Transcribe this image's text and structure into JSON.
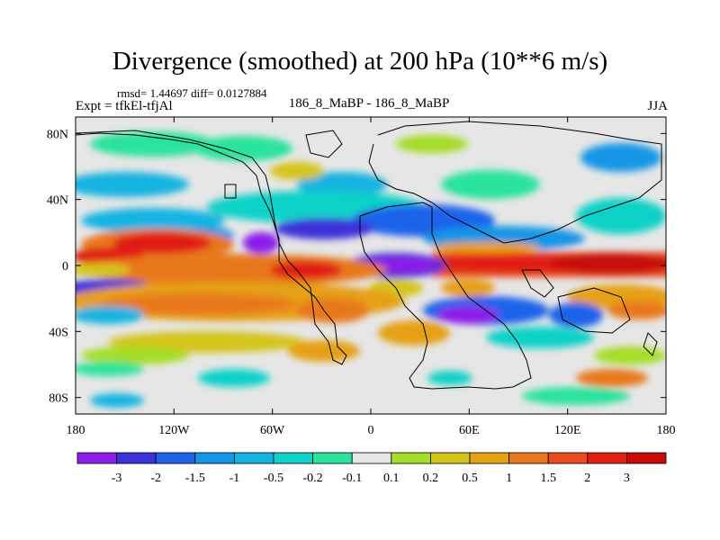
{
  "title": "Divergence (smoothed) at 200 hPa (10**6 m/s)",
  "stats_line": "rmsd= 1.44697 diff= 0.0127884",
  "expt_line": "Expt = tfkEl-tfjAl",
  "comparison_label": "186_8_MaBP - 186_8_MaBP",
  "season": "JJA",
  "map": {
    "projection": "cylindrical-equidistant",
    "lon_range": [
      -180,
      180
    ],
    "lat_range": [
      -90,
      90
    ],
    "x_ticks": [
      {
        "lon": -180,
        "label": "180"
      },
      {
        "lon": -120,
        "label": "120W"
      },
      {
        "lon": -60,
        "label": "60W"
      },
      {
        "lon": 0,
        "label": "0"
      },
      {
        "lon": 60,
        "label": "60E"
      },
      {
        "lon": 120,
        "label": "120E"
      },
      {
        "lon": 180,
        "label": "180"
      }
    ],
    "y_ticks": [
      {
        "lat": 80,
        "label": "80N"
      },
      {
        "lat": 40,
        "label": "40N"
      },
      {
        "lat": 0,
        "label": "0"
      },
      {
        "lat": -40,
        "label": "40S"
      },
      {
        "lat": -80,
        "label": "80S"
      }
    ]
  },
  "colorbar": {
    "labels": [
      "-3",
      "-2",
      "-1.5",
      "-1",
      "-0.5",
      "-0.2",
      "-0.1",
      "0.1",
      "0.2",
      "0.5",
      "1",
      "1.5",
      "2",
      "3"
    ],
    "colors": [
      "#8c1eea",
      "#3c32d9",
      "#1e64eb",
      "#1496e6",
      "#14b4e1",
      "#11d2c8",
      "#2be39c",
      "#e6e6e6",
      "#a5dd28",
      "#d4c41a",
      "#e6a014",
      "#e8781e",
      "#eb4b1e",
      "#e11e14",
      "#c80a0a"
    ]
  },
  "chart_data": {
    "type": "heatmap",
    "variable": "200 hPa velocity-potential divergence difference (smoothed)",
    "units": "10**6 m/s",
    "levels": [
      -3,
      -2,
      -1.5,
      -1,
      -0.5,
      -0.2,
      -0.1,
      0.1,
      0.2,
      0.5,
      1,
      1.5,
      2,
      3
    ],
    "features": [
      {
        "region": "equatorial Indian Ocean / Maritime Continent band (lat 0 to 5N, lon 45E-180)",
        "value": 3
      },
      {
        "region": "equatorial Atlantic/Africa (lat 0, lon 20W-50E)",
        "value": -3
      },
      {
        "region": "northern South America / Caribbean (lat 15N, lon 75W)",
        "value": -2.5
      },
      {
        "region": "tropical East Pacific (lat 15N, lon 150W-100W)",
        "value": 2
      },
      {
        "region": "central North Atlantic (lat 25N, lon 40W-0)",
        "value": -2
      },
      {
        "region": "southern Indian Ocean (lat 30S, lon 40E-90E)",
        "value": -3
      },
      {
        "region": "South Pacific (lat 20S, lon 180-60W)",
        "value": 1.5
      },
      {
        "region": "Southeast Pacific (lat 10S, lon 180-150W)",
        "value": -2
      },
      {
        "region": "high latitudes north (lat 60N-80N)",
        "value": 0
      }
    ]
  }
}
